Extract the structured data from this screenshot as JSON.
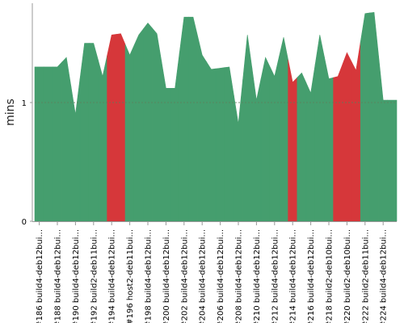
{
  "chart_data": {
    "type": "area",
    "title": "",
    "xlabel": "",
    "ylabel": "mins",
    "ylim": [
      0,
      1.8
    ],
    "yticks": [
      0,
      1
    ],
    "grid": "dashed horizontal line at y = 1",
    "legend": "none",
    "colors": {
      "success": "#459e6e",
      "failure": "#d6373a",
      "gridline": "#5a7f5a",
      "axis": "#999999"
    },
    "builds": [
      {
        "label": "#186 build4-deb12bui...",
        "min": 1.3,
        "status": "success"
      },
      {
        "label": "",
        "min": 1.3,
        "status": "success"
      },
      {
        "label": "#188 build4-deb12bui...",
        "min": 1.3,
        "status": "success"
      },
      {
        "label": "",
        "min": 1.38,
        "status": "success"
      },
      {
        "label": "#190 build4-deb12bui...",
        "min": 0.9,
        "status": "success"
      },
      {
        "label": "",
        "min": 1.5,
        "status": "success"
      },
      {
        "label": "#192 build2-deb11bui...",
        "min": 1.5,
        "status": "success"
      },
      {
        "label": "",
        "min": 1.22,
        "status": "success"
      },
      {
        "label": "#194 build4-deb12bui...",
        "min": 1.57,
        "status": "failure"
      },
      {
        "label": "",
        "min": 1.58,
        "status": "failure"
      },
      {
        "label": "#196 host2-deb11bui...",
        "min": 1.4,
        "status": "success"
      },
      {
        "label": "",
        "min": 1.57,
        "status": "success"
      },
      {
        "label": "#198 build4-deb12bui...",
        "min": 1.67,
        "status": "success"
      },
      {
        "label": "",
        "min": 1.58,
        "status": "success"
      },
      {
        "label": "#200 build4-deb12bui...",
        "min": 1.12,
        "status": "success"
      },
      {
        "label": "",
        "min": 1.12,
        "status": "success"
      },
      {
        "label": "#202 build4-deb12bui...",
        "min": 1.72,
        "status": "success"
      },
      {
        "label": "",
        "min": 1.72,
        "status": "success"
      },
      {
        "label": "#204 build4-deb12bui...",
        "min": 1.4,
        "status": "success"
      },
      {
        "label": "",
        "min": 1.28,
        "status": "success"
      },
      {
        "label": "#206 build4-deb12bui...",
        "min": 1.29,
        "status": "success"
      },
      {
        "label": "",
        "min": 1.3,
        "status": "success"
      },
      {
        "label": "#208 build4-deb12bui...",
        "min": 0.82,
        "status": "success"
      },
      {
        "label": "",
        "min": 1.57,
        "status": "success"
      },
      {
        "label": "#210 build4-deb12bui...",
        "min": 1.02,
        "status": "success"
      },
      {
        "label": "",
        "min": 1.38,
        "status": "success"
      },
      {
        "label": "#212 build4-deb12bui...",
        "min": 1.22,
        "status": "success"
      },
      {
        "label": "",
        "min": 1.55,
        "status": "success"
      },
      {
        "label": "#214 build4-deb12bui...",
        "min": 1.17,
        "status": "failure"
      },
      {
        "label": "",
        "min": 1.25,
        "status": "success"
      },
      {
        "label": "#216 build4-deb12bui...",
        "min": 1.08,
        "status": "success"
      },
      {
        "label": "",
        "min": 1.57,
        "status": "success"
      },
      {
        "label": "#218 build2-deb10bui...",
        "min": 1.2,
        "status": "success"
      },
      {
        "label": "",
        "min": 1.22,
        "status": "failure"
      },
      {
        "label": "#220 build2-deb10bui...",
        "min": 1.42,
        "status": "failure"
      },
      {
        "label": "",
        "min": 1.27,
        "status": "failure"
      },
      {
        "label": "#222 build2-deb11bui...",
        "min": 1.75,
        "status": "success"
      },
      {
        "label": "",
        "min": 1.76,
        "status": "success"
      },
      {
        "label": "#224 build4-deb12bui...",
        "min": 1.02,
        "status": "success"
      },
      {
        "label": "",
        "min": 1.02,
        "status": "success"
      }
    ]
  }
}
